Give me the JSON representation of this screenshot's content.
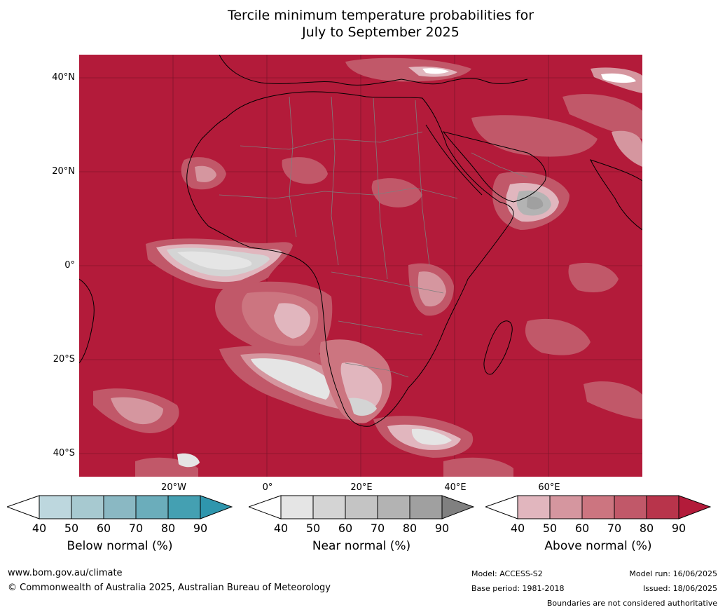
{
  "title": {
    "line1": "Tercile minimum temperature probabilities for",
    "line2": "July to September 2025"
  },
  "map": {
    "lat_labels": [
      "40°N",
      "20°N",
      "0°",
      "20°S",
      "40°S"
    ],
    "lon_labels": [
      "20°W",
      "0°",
      "20°E",
      "40°E",
      "60°E"
    ],
    "base_color": "#b31b3a",
    "land_outline": "#000000",
    "border_color": "#7f7f7f"
  },
  "colorbars": [
    {
      "label": "Below normal (%)",
      "ticks": [
        "40",
        "50",
        "60",
        "70",
        "80",
        "90"
      ],
      "colors": [
        "#ffffff",
        "#bdd7de",
        "#a7c9d0",
        "#8ab8c3",
        "#6badbb",
        "#44a0b2",
        "#2f96ad"
      ]
    },
    {
      "label": "Near normal (%)",
      "ticks": [
        "40",
        "50",
        "60",
        "70",
        "80",
        "90"
      ],
      "colors": [
        "#ffffff",
        "#e5e5e5",
        "#d4d4d4",
        "#c4c4c4",
        "#b3b3b3",
        "#a0a0a0",
        "#808080"
      ]
    },
    {
      "label": "Above normal (%)",
      "ticks": [
        "40",
        "50",
        "60",
        "70",
        "80",
        "90"
      ],
      "colors": [
        "#ffffff",
        "#e1b6be",
        "#d5969f",
        "#cc7580",
        "#c15869",
        "#b8344b",
        "#b31b3a"
      ]
    }
  ],
  "footer": {
    "url": "www.bom.gov.au/climate",
    "copyright": "© Commonwealth of Australia 2025, Australian Bureau of Meteorology",
    "model": "Model: ACCESS-S2",
    "base_period": "Base period: 1981-2018",
    "model_run": "Model run: 16/06/2025",
    "issued": "Issued: 18/06/2025",
    "disclaimer": "Boundaries are not considered authoritative"
  }
}
